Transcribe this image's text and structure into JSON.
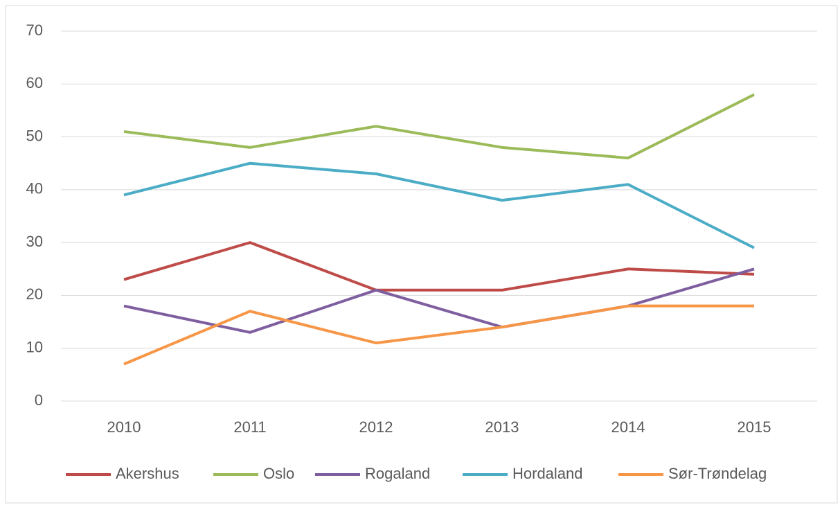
{
  "chart_data": {
    "type": "line",
    "categories": [
      "2010",
      "2011",
      "2012",
      "2013",
      "2014",
      "2015"
    ],
    "series": [
      {
        "name": "Akershus",
        "color": "#be4b48",
        "values": [
          23,
          30,
          21,
          21,
          25,
          24
        ]
      },
      {
        "name": "Oslo",
        "color": "#9bbb59",
        "values": [
          51,
          48,
          52,
          48,
          46,
          58
        ]
      },
      {
        "name": "Rogaland",
        "color": "#7f5ea0",
        "values": [
          18,
          13,
          21,
          14,
          18,
          25
        ]
      },
      {
        "name": "Hordaland",
        "color": "#4bacc6",
        "values": [
          39,
          45,
          43,
          38,
          41,
          29
        ]
      },
      {
        "name": "Sør-Trøndelag",
        "color": "#f79646",
        "values": [
          7,
          17,
          11,
          14,
          18,
          18
        ]
      }
    ],
    "ylim": [
      0,
      70
    ],
    "yticks": [
      0,
      10,
      20,
      30,
      40,
      50,
      60,
      70
    ],
    "grid": true,
    "legend": "bottom"
  }
}
